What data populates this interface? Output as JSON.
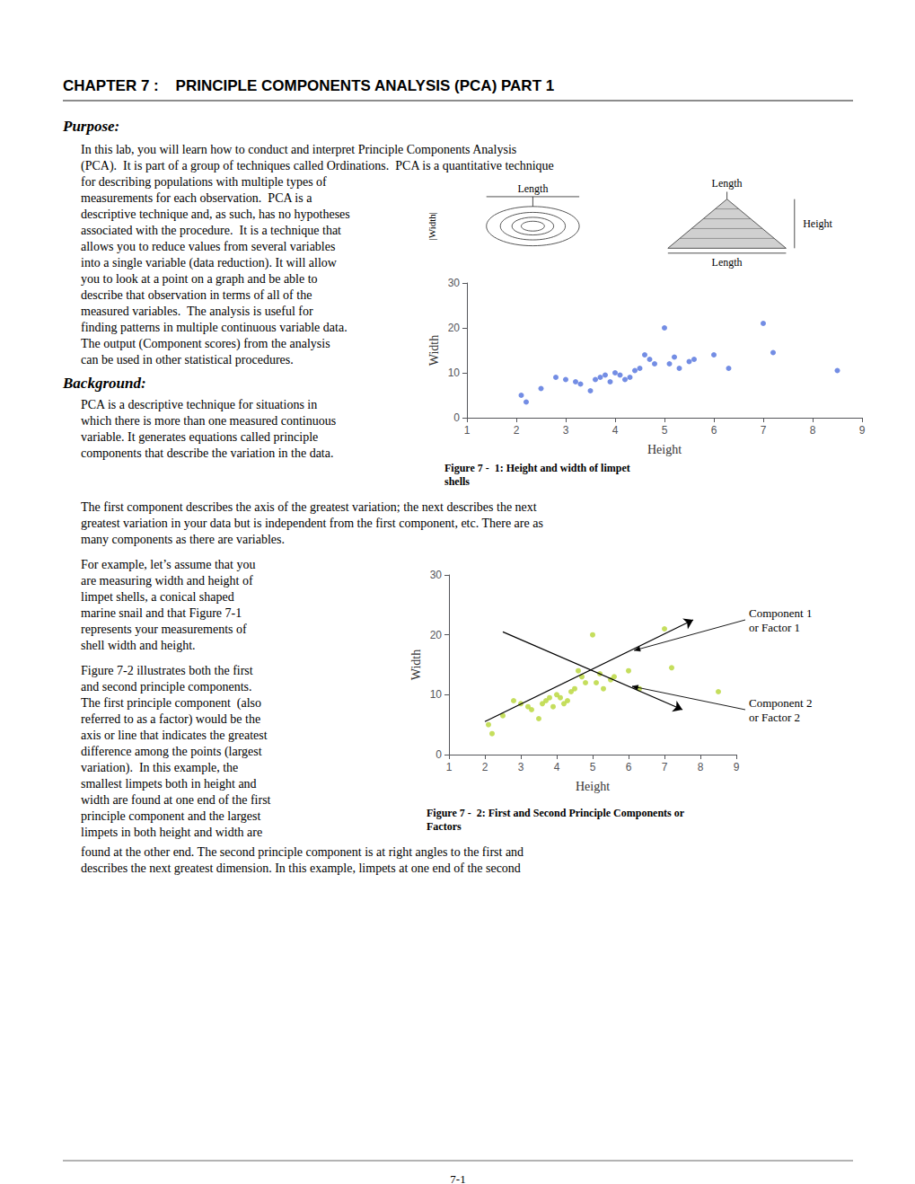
{
  "title": "CHAPTER 7 :    PRINCIPLE COMPONENTS ANALYSIS (PCA) PART 1",
  "sections": [
    {
      "heading": "Purpose:",
      "paragraphs": [
        [
          "In this lab, you will learn how to conduct and interpret Principle Components Analysis",
          "(PCA).  It is part of a group of techniques called Ordinations.  PCA is a quantitative technique",
          "for describing populations with multiple types of",
          "measurements for each observation.  PCA is a",
          "descriptive technique and, as such, has no hypotheses",
          "associated with the procedure.  It is a technique that",
          "allows you to reduce values from several variables",
          "into a single variable (data reduction). It will allow",
          "you to look at a point on a graph and be able to",
          "describe that observation in terms of all of the",
          "measured variables.  The analysis is useful for",
          "finding patterns in multiple continuous variable data.",
          "The output (Component scores) from the analysis",
          "can be used in other statistical procedures."
        ]
      ]
    },
    {
      "heading": "Background:",
      "paragraphs": [
        [
          "PCA is a descriptive technique for situations in",
          "which there is more than one measured continuous",
          "variable. It generates equations called principle",
          "components that describe the variation in the data.",
          "The first component describes the axis of the greatest variation; the next describes the next",
          "greatest variation in your data but is independent from the first component, etc. There are as",
          "many components as there are variables."
        ],
        [
          "For example, let’s assume that you",
          "are measuring width and height of",
          "limpet shells, a conical shaped",
          "marine snail and that Figure 7-1",
          "represents your measurements of",
          "shell width and height."
        ],
        [
          "Figure 7-2 illustrates both the first",
          "and second principle components.",
          "The first principle component  (also",
          "referred to as a factor) would be the",
          "axis or line that indicates the greatest",
          "difference among the points (largest",
          "variation).  In this example, the",
          "smallest limpets both in height and",
          "width are found at one end of the first",
          "principle component and the largest",
          "limpets in both height and width are",
          "found at the other end. The second principle component is at right angles to the first and",
          "describes the next greatest dimension. In this example, limpets at one end of the second"
        ]
      ]
    }
  ],
  "page_number": "7-1",
  "chart_data": [
    {
      "type": "scatter",
      "title": "Figure 7 -  1: Height and width of limpet\nshells",
      "x_label": "Height",
      "y_label": "Width",
      "x": [
        2.1,
        2.2,
        2.5,
        2.8,
        3.0,
        3.2,
        3.3,
        3.5,
        3.6,
        3.7,
        3.8,
        3.9,
        4.0,
        4.1,
        4.2,
        4.3,
        4.4,
        4.5,
        4.6,
        4.7,
        4.8,
        5.0,
        5.1,
        5.2,
        5.3,
        5.5,
        5.6,
        6.0,
        6.3,
        7.0,
        7.2,
        8.5
      ],
      "values": [
        5.0,
        3.5,
        6.5,
        9.0,
        8.5,
        8.0,
        7.5,
        6.0,
        8.5,
        9.0,
        9.5,
        8.0,
        10.0,
        9.5,
        8.5,
        9.0,
        10.5,
        11.0,
        14.0,
        13.0,
        12.0,
        20.0,
        12.0,
        13.5,
        11.0,
        12.5,
        13.0,
        14.0,
        11.0,
        21.0,
        14.5,
        10.5
      ],
      "xlim": [
        1,
        9
      ],
      "xticks": [
        1,
        2,
        3,
        4,
        5,
        6,
        7,
        8,
        9
      ],
      "ylim": [
        0,
        30
      ],
      "yticks": [
        0,
        10,
        20,
        30
      ],
      "grid": false,
      "annotations": [
        "Length",
        "|Width|",
        "Length",
        "Height",
        "Length"
      ]
    },
    {
      "type": "scatter",
      "title": "Figure 7 -  2: First and Second Principle Components or\nFactors",
      "x_label": "Height",
      "y_label": "Width",
      "x": [
        2.1,
        2.2,
        2.5,
        2.8,
        3.0,
        3.2,
        3.3,
        3.5,
        3.6,
        3.7,
        3.8,
        3.9,
        4.0,
        4.1,
        4.2,
        4.3,
        4.4,
        4.5,
        4.6,
        4.7,
        4.8,
        5.0,
        5.1,
        5.2,
        5.3,
        5.5,
        5.6,
        6.0,
        6.3,
        7.0,
        7.2,
        8.5
      ],
      "values": [
        5.0,
        3.5,
        6.5,
        9.0,
        8.5,
        8.0,
        7.5,
        6.0,
        8.5,
        9.0,
        9.5,
        8.0,
        10.0,
        9.5,
        8.5,
        9.0,
        10.5,
        11.0,
        14.0,
        13.0,
        12.0,
        20.0,
        12.0,
        13.5,
        11.0,
        12.5,
        13.0,
        14.0,
        11.0,
        21.0,
        14.5,
        10.5
      ],
      "xlim": [
        1,
        9
      ],
      "xticks": [
        1,
        2,
        3,
        4,
        5,
        6,
        7,
        8,
        9
      ],
      "ylim": [
        0,
        30
      ],
      "yticks": [
        0,
        10,
        20,
        30
      ],
      "grid": false,
      "annotations": [
        {
          "text": "Component 1\nor Factor 1",
          "from": [
            2.0,
            5.5
          ],
          "to": [
            7.8,
            22.5
          ]
        },
        {
          "text": "Component 2\nor Factor 2",
          "from": [
            2.5,
            20.5
          ],
          "to": [
            7.5,
            7.5
          ]
        }
      ]
    }
  ]
}
